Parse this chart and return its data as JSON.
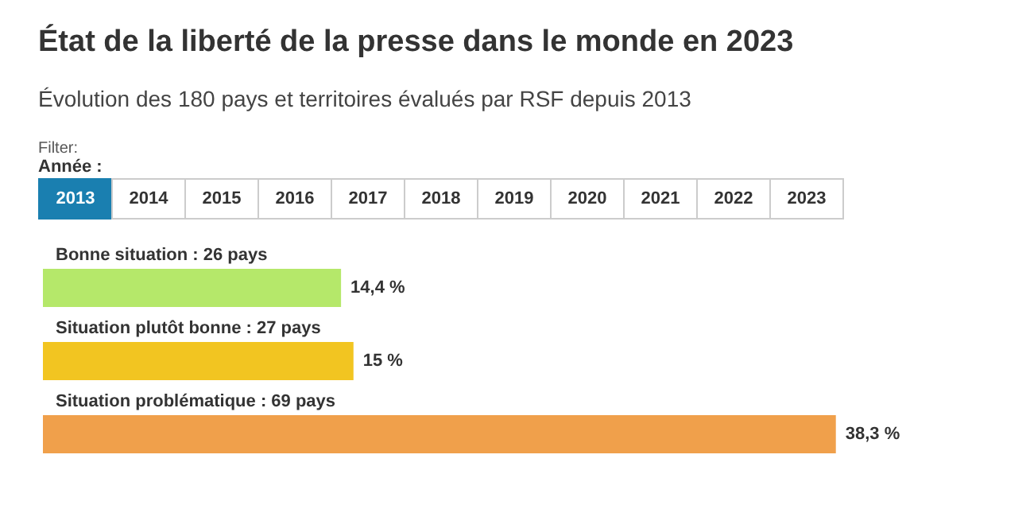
{
  "chart_data": {
    "type": "bar",
    "orientation": "horizontal",
    "title": "État de la liberté de la presse dans le monde en 2023",
    "subtitle": "Évolution des 180 pays et territoires évalués par RSF depuis 2013",
    "annotations": [
      "Filter:",
      "Année :",
      "2013",
      "2014",
      "2015",
      "2016",
      "2017",
      "2018",
      "2019",
      "2020",
      "2021",
      "2022",
      "2023"
    ],
    "categories": [
      "Bonne situation : 26 pays",
      "Situation plutôt bonne : 27 pays",
      "Situation problématique : 69 pays"
    ],
    "values": [
      14.4,
      15,
      38.3
    ],
    "colors": [
      "#b5e86a",
      "#f2c521",
      "#f0a04b"
    ],
    "value_labels": [
      "14,4 %",
      "15 %",
      "38,3 %"
    ]
  }
}
